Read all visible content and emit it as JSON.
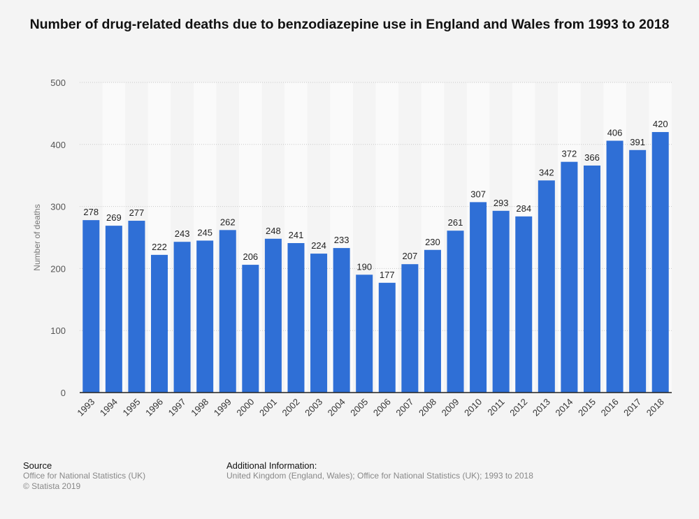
{
  "chart_data": {
    "type": "bar",
    "title": "Number of drug-related deaths due to benzodiazepine use in England and Wales from 1993 to 2018",
    "xlabel": "",
    "ylabel": "Number of deaths",
    "ylim": [
      0,
      500
    ],
    "yticks": [
      0,
      100,
      200,
      300,
      400,
      500
    ],
    "grid": true,
    "bar_color": "#2f6fd6",
    "categories": [
      "1993",
      "1994",
      "1995",
      "1996",
      "1997",
      "1998",
      "1999",
      "2000",
      "2001",
      "2002",
      "2003",
      "2004",
      "2005",
      "2006",
      "2007",
      "2008",
      "2009",
      "2010",
      "2011",
      "2012",
      "2013",
      "2014",
      "2015",
      "2016",
      "2017",
      "2018"
    ],
    "values": [
      278,
      269,
      277,
      222,
      243,
      245,
      262,
      206,
      248,
      241,
      224,
      233,
      190,
      177,
      207,
      230,
      261,
      307,
      293,
      284,
      342,
      372,
      366,
      406,
      391,
      420
    ]
  },
  "footer": {
    "source_heading": "Source",
    "source_lines": [
      "Office for National Statistics (UK)",
      "© Statista 2019"
    ],
    "info_heading": "Additional Information:",
    "info_text": "United Kingdom (England, Wales); Office for National Statistics (UK); 1993 to 2018"
  }
}
